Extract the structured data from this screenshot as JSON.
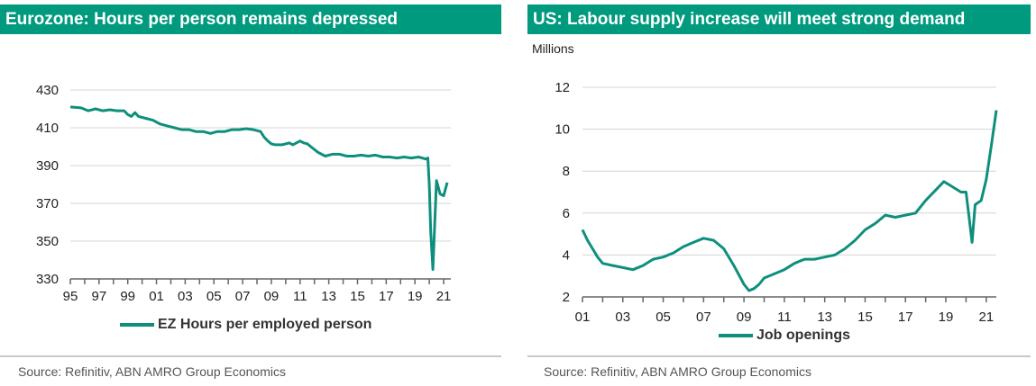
{
  "charts": [
    {
      "title": "Eurozone: Hours per person remains depressed",
      "unit": "",
      "source": "Source: Refinitiv, ABN AMRO Group Economics",
      "legend_label": "EZ Hours per employed person",
      "line_color": "#0e8f7d",
      "header_color": "#009a7e"
    },
    {
      "title": "US: Labour supply increase will meet strong demand",
      "unit": "Millions",
      "source": "Source: Refinitiv, ABN AMRO Group Economics",
      "legend_label": "Job openings",
      "line_color": "#0e8f7d",
      "header_color": "#009a7e"
    }
  ],
  "chart_data": [
    {
      "type": "line",
      "title": "Eurozone: Hours per person remains depressed",
      "xlabel": "",
      "ylabel": "",
      "xlim": [
        1995,
        2021.5
      ],
      "ylim": [
        330,
        430
      ],
      "yticks": [
        330,
        350,
        370,
        390,
        410,
        430
      ],
      "yticklabels": [
        "330",
        "350",
        "370",
        "390",
        "410",
        "430"
      ],
      "xticks": [
        1995,
        1997,
        1999,
        2001,
        2003,
        2005,
        2007,
        2009,
        2011,
        2013,
        2015,
        2017,
        2019,
        2021
      ],
      "xticklabels": [
        "95",
        "97",
        "99",
        "01",
        "03",
        "05",
        "07",
        "09",
        "11",
        "13",
        "15",
        "17",
        "19",
        "21"
      ],
      "grid": "horizontal",
      "legend": "bottom",
      "series": [
        {
          "name": "EZ Hours per employed person",
          "x": [
            1995.0,
            1995.75,
            1996.25,
            1996.75,
            1997.25,
            1997.75,
            1998.25,
            1998.75,
            1999.0,
            1999.25,
            1999.5,
            1999.75,
            2000.25,
            2000.75,
            2001.25,
            2001.75,
            2002.25,
            2002.75,
            2003.25,
            2003.75,
            2004.25,
            2004.75,
            2005.25,
            2005.75,
            2006.25,
            2006.75,
            2007.25,
            2007.75,
            2008.25,
            2008.5,
            2008.75,
            2009.0,
            2009.25,
            2009.75,
            2010.25,
            2010.5,
            2010.75,
            2011.0,
            2011.25,
            2011.5,
            2011.75,
            2012.25,
            2012.75,
            2013.25,
            2013.75,
            2014.25,
            2014.75,
            2015.25,
            2015.75,
            2016.25,
            2016.75,
            2017.25,
            2017.75,
            2018.25,
            2018.75,
            2019.25,
            2019.75,
            2019.9,
            2020.0,
            2020.1,
            2020.25,
            2020.5,
            2020.75,
            2021.0,
            2021.25
          ],
          "y": [
            421,
            420.5,
            419,
            420,
            419,
            419.5,
            419,
            419,
            417,
            416,
            418,
            416,
            415,
            414,
            412,
            411,
            410,
            409,
            409,
            408,
            408,
            407,
            408,
            408,
            409,
            409,
            409.5,
            409,
            408,
            405,
            403,
            401.5,
            401,
            401,
            402,
            401,
            402,
            403,
            402,
            401.5,
            400,
            397,
            395,
            396,
            396,
            395,
            395,
            395.5,
            395,
            395.5,
            394.5,
            394.5,
            394,
            394.5,
            394,
            394.5,
            393.5,
            394,
            380,
            355,
            335,
            382,
            375,
            374,
            381
          ]
        }
      ]
    },
    {
      "type": "line",
      "title": "US: Labour supply increase will meet strong demand",
      "xlabel": "",
      "ylabel": "Millions",
      "xlim": [
        2001,
        2021.5
      ],
      "ylim": [
        2,
        12
      ],
      "yticks": [
        2,
        4,
        6,
        8,
        10,
        12
      ],
      "yticklabels": [
        "2",
        "4",
        "6",
        "8",
        "10",
        "12"
      ],
      "xticks": [
        2001,
        2003,
        2005,
        2007,
        2009,
        2011,
        2013,
        2015,
        2017,
        2019,
        2021
      ],
      "xticklabels": [
        "01",
        "03",
        "05",
        "07",
        "09",
        "11",
        "13",
        "15",
        "17",
        "19",
        "21"
      ],
      "grid": "horizontal",
      "legend": "bottom",
      "series": [
        {
          "name": "Job openings",
          "x": [
            2001.0,
            2001.25,
            2001.5,
            2001.75,
            2002.0,
            2002.5,
            2003.0,
            2003.5,
            2004.0,
            2004.5,
            2005.0,
            2005.5,
            2006.0,
            2006.5,
            2007.0,
            2007.5,
            2008.0,
            2008.5,
            2009.0,
            2009.25,
            2009.5,
            2009.75,
            2010.0,
            2010.5,
            2011.0,
            2011.5,
            2012.0,
            2012.5,
            2013.0,
            2013.5,
            2014.0,
            2014.5,
            2015.0,
            2015.5,
            2016.0,
            2016.5,
            2017.0,
            2017.5,
            2018.0,
            2018.5,
            2018.9,
            2019.25,
            2019.75,
            2020.0,
            2020.15,
            2020.3,
            2020.45,
            2020.75,
            2021.0,
            2021.25,
            2021.5
          ],
          "y": [
            5.2,
            4.7,
            4.3,
            3.9,
            3.6,
            3.5,
            3.4,
            3.3,
            3.5,
            3.8,
            3.9,
            4.1,
            4.4,
            4.6,
            4.8,
            4.7,
            4.3,
            3.5,
            2.6,
            2.3,
            2.4,
            2.6,
            2.9,
            3.1,
            3.3,
            3.6,
            3.8,
            3.8,
            3.9,
            4.0,
            4.3,
            4.7,
            5.2,
            5.5,
            5.9,
            5.8,
            5.9,
            6.0,
            6.6,
            7.1,
            7.5,
            7.3,
            7.0,
            7.0,
            5.8,
            4.6,
            6.4,
            6.6,
            7.6,
            9.2,
            10.9
          ]
        }
      ]
    }
  ]
}
